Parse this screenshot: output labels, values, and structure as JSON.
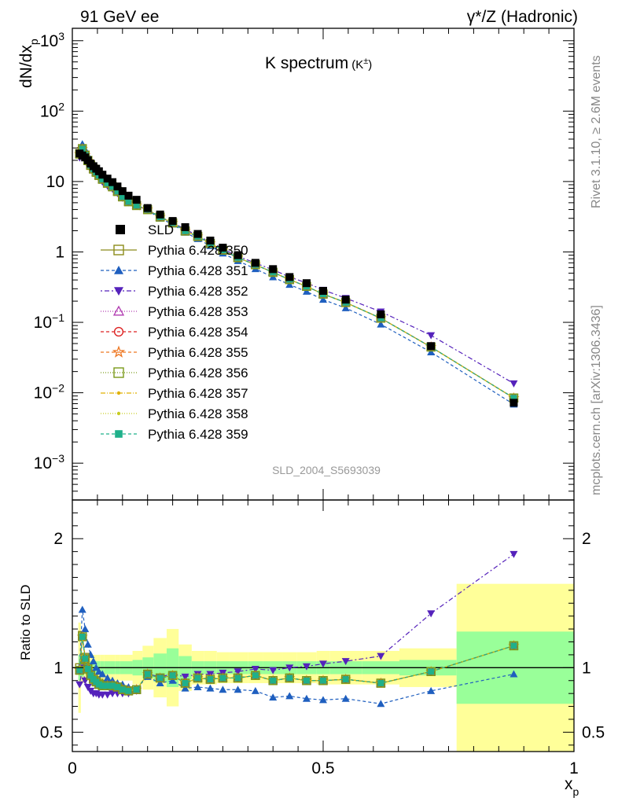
{
  "header": {
    "left": "91 GeV ee",
    "right": "γ*/Z (Hadronic)"
  },
  "side_labels": {
    "rivet": "Rivet 3.1.10, ≥ 2.6M events",
    "mcplots": "mcplots.cern.ch [arXiv:1306.3436]"
  },
  "chart_data": {
    "type": "scatter",
    "title": "K spectrum",
    "title_suffix": "(K",
    "title_sup": "±",
    "title_close": ")",
    "analysis_label": "SLD_2004_S5693039",
    "xlabel": "x",
    "xlabel_sub": "p",
    "ylabel_main": "dN/dx",
    "ylabel_sub": "p",
    "ylabel_ratio": "Ratio to SLD",
    "xlim": [
      0,
      1
    ],
    "main_ylim_log": [
      0.0003,
      1500
    ],
    "main_yscale": "log",
    "ratio_ylim": [
      0.35,
      2.3
    ],
    "x_ticks": [
      "0",
      "0.5",
      "1"
    ],
    "main_y_ticks": [
      {
        "base": "10",
        "exp": "3",
        "v": 1000
      },
      {
        "base": "10",
        "exp": "2",
        "v": 100
      },
      {
        "base": "10",
        "exp": "",
        "v": 10
      },
      {
        "base": "1",
        "exp": "",
        "v": 1
      },
      {
        "base": "10",
        "exp": "−1",
        "v": 0.1
      },
      {
        "base": "10",
        "exp": "−2",
        "v": 0.01
      },
      {
        "base": "10",
        "exp": "−3",
        "v": 0.001
      }
    ],
    "ratio_y_ticks": [
      {
        "label": "0.5",
        "v": 0.5
      },
      {
        "label": "1",
        "v": 1
      },
      {
        "label": "2",
        "v": 2
      }
    ],
    "legend_position": "center-left",
    "x": [
      0.0145,
      0.02,
      0.0255,
      0.031,
      0.0365,
      0.042,
      0.0475,
      0.053,
      0.06,
      0.07,
      0.08,
      0.09,
      0.1,
      0.112,
      0.128,
      0.15,
      0.175,
      0.2,
      0.225,
      0.25,
      0.275,
      0.3,
      0.33,
      0.365,
      0.4,
      0.433,
      0.467,
      0.5,
      0.545,
      0.615,
      0.715,
      0.88
    ],
    "data": {
      "name": "SLD",
      "values": [
        25.0,
        23.5,
        22.0,
        20.0,
        18.0,
        16.5,
        15.2,
        14.0,
        12.5,
        11.0,
        9.8,
        8.5,
        7.3,
        6.3,
        5.5,
        4.2,
        3.4,
        2.75,
        2.25,
        1.8,
        1.45,
        1.15,
        0.9,
        0.7,
        0.57,
        0.44,
        0.36,
        0.28,
        0.21,
        0.13,
        0.046,
        0.0072
      ]
    },
    "data_band_x_edges": [
      0.012,
      0.017,
      0.023,
      0.028,
      0.034,
      0.039,
      0.045,
      0.05,
      0.056,
      0.064,
      0.076,
      0.085,
      0.095,
      0.105,
      0.12,
      0.14,
      0.162,
      0.188,
      0.212,
      0.238,
      0.262,
      0.288,
      0.312,
      0.35,
      0.38,
      0.42,
      0.447,
      0.487,
      0.513,
      0.578,
      0.652,
      0.766,
      1.0
    ],
    "data_band_stat": [
      0.1,
      0.07,
      0.05,
      0.05,
      0.05,
      0.05,
      0.05,
      0.05,
      0.05,
      0.05,
      0.05,
      0.05,
      0.05,
      0.05,
      0.06,
      0.08,
      0.11,
      0.15,
      0.09,
      0.05,
      0.05,
      0.05,
      0.05,
      0.05,
      0.05,
      0.05,
      0.05,
      0.05,
      0.05,
      0.05,
      0.06,
      0.28
    ],
    "data_band_total": [
      0.35,
      0.12,
      0.1,
      0.1,
      0.1,
      0.1,
      0.1,
      0.1,
      0.1,
      0.1,
      0.1,
      0.1,
      0.1,
      0.1,
      0.13,
      0.17,
      0.23,
      0.3,
      0.18,
      0.13,
      0.13,
      0.12,
      0.12,
      0.12,
      0.12,
      0.12,
      0.12,
      0.13,
      0.13,
      0.13,
      0.15,
      0.65
    ],
    "series": [
      {
        "name": "Pythia 6.428 350",
        "color": "#8b8b1a",
        "dash": "",
        "marker": "square-open",
        "ratio": [
          1.0,
          1.25,
          1.08,
          1.0,
          0.95,
          0.92,
          0.9,
          0.88,
          0.87,
          0.86,
          0.86,
          0.85,
          0.83,
          0.82,
          0.83,
          0.95,
          0.92,
          0.94,
          0.88,
          0.92,
          0.91,
          0.92,
          0.92,
          0.94,
          0.9,
          0.92,
          0.9,
          0.9,
          0.91,
          0.88,
          0.97,
          1.17
        ]
      },
      {
        "name": "Pythia 6.428 351",
        "color": "#1f5fbf",
        "dash": "4,3",
        "marker": "triangle-up",
        "ratio": [
          1.0,
          1.45,
          1.3,
          1.18,
          1.1,
          1.05,
          1.0,
          0.97,
          0.95,
          0.92,
          0.9,
          0.88,
          0.87,
          0.85,
          0.84,
          0.93,
          0.88,
          0.9,
          0.84,
          0.85,
          0.84,
          0.83,
          0.83,
          0.82,
          0.77,
          0.78,
          0.76,
          0.75,
          0.76,
          0.72,
          0.82,
          0.95
        ]
      },
      {
        "name": "Pythia 6.428 352",
        "color": "#5522bb",
        "dash": "2,3,6,3",
        "marker": "triangle-down",
        "ratio": [
          0.87,
          1.0,
          0.9,
          0.85,
          0.82,
          0.8,
          0.8,
          0.79,
          0.79,
          0.79,
          0.8,
          0.8,
          0.8,
          0.8,
          0.82,
          0.95,
          0.93,
          0.95,
          0.93,
          0.95,
          0.95,
          0.96,
          0.97,
          0.99,
          0.98,
          1.0,
          1.01,
          1.03,
          1.05,
          1.09,
          1.42,
          1.88
        ]
      },
      {
        "name": "Pythia 6.428 353",
        "color": "#b03ab0",
        "dash": "1,2",
        "marker": "triangle-open",
        "ratio": [
          0.98,
          1.24,
          1.07,
          0.99,
          0.94,
          0.91,
          0.89,
          0.87,
          0.86,
          0.86,
          0.86,
          0.85,
          0.83,
          0.82,
          0.83,
          0.95,
          0.92,
          0.94,
          0.88,
          0.92,
          0.91,
          0.92,
          0.92,
          0.94,
          0.9,
          0.92,
          0.9,
          0.9,
          0.91,
          0.88,
          0.97,
          1.17
        ]
      },
      {
        "name": "Pythia 6.428 354",
        "color": "#dd2222",
        "dash": "4,3",
        "marker": "circle-open",
        "ratio": [
          0.98,
          1.24,
          1.07,
          0.99,
          0.94,
          0.91,
          0.89,
          0.87,
          0.86,
          0.86,
          0.86,
          0.85,
          0.83,
          0.82,
          0.83,
          0.95,
          0.92,
          0.94,
          0.88,
          0.92,
          0.91,
          0.92,
          0.92,
          0.94,
          0.9,
          0.92,
          0.9,
          0.9,
          0.91,
          0.88,
          0.97,
          1.17
        ]
      },
      {
        "name": "Pythia 6.428 355",
        "color": "#ee7722",
        "dash": "4,3",
        "marker": "star-open",
        "ratio": [
          0.98,
          1.24,
          1.07,
          0.99,
          0.94,
          0.91,
          0.89,
          0.87,
          0.86,
          0.86,
          0.86,
          0.85,
          0.83,
          0.82,
          0.83,
          0.95,
          0.92,
          0.94,
          0.88,
          0.92,
          0.91,
          0.92,
          0.92,
          0.94,
          0.9,
          0.92,
          0.9,
          0.9,
          0.91,
          0.88,
          0.97,
          1.17
        ]
      },
      {
        "name": "Pythia 6.428 356",
        "color": "#7a9a1a",
        "dash": "1,2",
        "marker": "square-open",
        "ratio": [
          0.98,
          1.24,
          1.07,
          0.99,
          0.94,
          0.91,
          0.89,
          0.87,
          0.86,
          0.86,
          0.86,
          0.85,
          0.83,
          0.82,
          0.83,
          0.95,
          0.92,
          0.94,
          0.88,
          0.92,
          0.91,
          0.92,
          0.92,
          0.94,
          0.9,
          0.92,
          0.9,
          0.9,
          0.91,
          0.88,
          0.97,
          1.17
        ]
      },
      {
        "name": "Pythia 6.428 357",
        "color": "#e0b000",
        "dash": "6,2,1,2",
        "marker": "dot",
        "ratio": [
          0.98,
          1.24,
          1.07,
          0.99,
          0.94,
          0.91,
          0.89,
          0.87,
          0.86,
          0.86,
          0.86,
          0.85,
          0.83,
          0.82,
          0.83,
          0.95,
          0.92,
          0.94,
          0.88,
          0.92,
          0.91,
          0.92,
          0.92,
          0.94,
          0.9,
          0.92,
          0.9,
          0.9,
          0.91,
          0.88,
          0.97,
          1.17
        ]
      },
      {
        "name": "Pythia 6.428 358",
        "color": "#c8cc22",
        "dash": "1,2",
        "marker": "dot",
        "ratio": [
          0.98,
          1.24,
          1.07,
          0.99,
          0.94,
          0.91,
          0.89,
          0.87,
          0.86,
          0.86,
          0.86,
          0.85,
          0.83,
          0.82,
          0.83,
          0.95,
          0.92,
          0.94,
          0.88,
          0.92,
          0.91,
          0.92,
          0.92,
          0.94,
          0.9,
          0.92,
          0.9,
          0.9,
          0.91,
          0.88,
          0.97,
          1.17
        ]
      },
      {
        "name": "Pythia 6.428 359",
        "color": "#1fb08a",
        "dash": "4,3",
        "marker": "square-filled",
        "ratio": [
          0.98,
          1.24,
          1.07,
          0.99,
          0.94,
          0.91,
          0.89,
          0.87,
          0.86,
          0.86,
          0.86,
          0.85,
          0.83,
          0.82,
          0.83,
          0.95,
          0.92,
          0.94,
          0.88,
          0.92,
          0.91,
          0.92,
          0.92,
          0.94,
          0.9,
          0.92,
          0.9,
          0.9,
          0.91,
          0.88,
          0.97,
          1.17
        ]
      }
    ]
  }
}
